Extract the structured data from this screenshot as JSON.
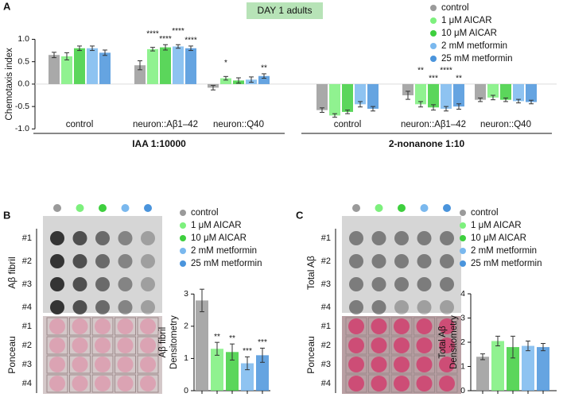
{
  "panels": [
    "A",
    "B",
    "C"
  ],
  "badge": "DAY 1 adults",
  "blots": [
    {
      "title": "Aβ fibril",
      "rows": [
        "#1",
        "#2",
        "#3",
        "#4"
      ]
    },
    {
      "title": "Ponceau",
      "rows": [
        "#1",
        "#2",
        "#3",
        "#4"
      ]
    },
    {
      "title": "Total Aβ",
      "rows": [
        "#1",
        "#2",
        "#3",
        "#4"
      ]
    },
    {
      "title": "Ponceau",
      "rows": [
        "#1",
        "#2",
        "#3",
        "#4"
      ]
    }
  ],
  "chart_data": [
    {
      "type": "bar",
      "ylabel": [
        "Chemotaxis index"
      ],
      "categories": [
        "control",
        "neuron::Aβ1–42",
        "neuron::Q40",
        "control",
        "neuron::Aβ1–42",
        "neuron::Q40"
      ],
      "sections": [
        "IAA 1:10000",
        "2-nonanone 1:10"
      ],
      "ylim": [
        -1.1,
        1.15
      ],
      "yticks": [
        {
          "value": -1.0,
          "label": "-1.0"
        },
        {
          "value": -0.5,
          "label": "-0.5"
        },
        {
          "value": 0.0,
          "label": "0.0"
        },
        {
          "value": 0.5,
          "label": "0.5"
        },
        {
          "value": 1.0,
          "label": "1.0"
        }
      ],
      "series": [
        {
          "name": "control",
          "color": "#9a9a9a",
          "values": [
            0.65,
            0.42,
            -0.08,
            -0.58,
            -0.25,
            -0.35
          ],
          "errors": [
            0.06,
            0.1,
            0.05,
            0.05,
            0.09,
            0.04
          ],
          "annotations": [
            null,
            null,
            null,
            null,
            null,
            null
          ]
        },
        {
          "name": "1 μM AICAR",
          "color": "#7df07d",
          "values": [
            0.62,
            0.78,
            0.13,
            -0.7,
            -0.45,
            -0.3
          ],
          "errors": [
            0.08,
            0.04,
            0.04,
            0.04,
            0.06,
            0.05
          ],
          "annotations": [
            null,
            "****",
            "*",
            null,
            "**",
            null
          ]
        },
        {
          "name": "10 μM AICAR",
          "color": "#3ecf3e",
          "values": [
            0.8,
            0.82,
            0.08,
            -0.62,
            -0.52,
            -0.35
          ],
          "errors": [
            0.05,
            0.06,
            0.06,
            0.04,
            0.06,
            0.04
          ],
          "annotations": [
            null,
            "****",
            null,
            null,
            "***",
            null
          ]
        },
        {
          "name": "2 mM metformin",
          "color": "#7ab8ee",
          "values": [
            0.8,
            0.84,
            0.1,
            -0.45,
            -0.55,
            -0.38
          ],
          "errors": [
            0.05,
            0.04,
            0.06,
            0.06,
            0.05,
            0.04
          ],
          "annotations": [
            null,
            "****",
            null,
            null,
            "****",
            null
          ]
        },
        {
          "name": "25 mM metformin",
          "color": "#4a94dc",
          "values": [
            0.7,
            0.8,
            0.18,
            -0.55,
            -0.5,
            -0.4
          ],
          "errors": [
            0.06,
            0.05,
            0.05,
            0.05,
            0.06,
            0.04
          ],
          "annotations": [
            null,
            "****",
            "**",
            null,
            "**",
            null
          ]
        }
      ]
    },
    {
      "type": "bar",
      "ylabel": [
        "Aβ fibril",
        "Densitometry"
      ],
      "categories": [
        null
      ],
      "ylim": [
        0,
        3.5
      ],
      "yticks": [
        0,
        1,
        2,
        3
      ],
      "series": [
        {
          "name": "control",
          "color": "#9a9a9a",
          "values": [
            2.8
          ],
          "errors": [
            0.35
          ],
          "annotations": [
            null
          ]
        },
        {
          "name": "1 μM AICAR",
          "color": "#7df07d",
          "values": [
            1.3
          ],
          "errors": [
            0.2
          ],
          "annotations": [
            "**"
          ]
        },
        {
          "name": "10 μM AICAR",
          "color": "#3ecf3e",
          "values": [
            1.2
          ],
          "errors": [
            0.25
          ],
          "annotations": [
            "**"
          ]
        },
        {
          "name": "2 mM metformin",
          "color": "#7ab8ee",
          "values": [
            0.85
          ],
          "errors": [
            0.2
          ],
          "annotations": [
            "***"
          ]
        },
        {
          "name": "25 mM metformin",
          "color": "#4a94dc",
          "values": [
            1.1
          ],
          "errors": [
            0.22
          ],
          "annotations": [
            "***"
          ]
        }
      ]
    },
    {
      "type": "bar",
      "ylabel": [
        "Total Aβ",
        "Densitometry"
      ],
      "categories": [
        null
      ],
      "ylim": [
        0,
        4
      ],
      "yticks": [
        0,
        1,
        2,
        3,
        4
      ],
      "series": [
        {
          "name": "control",
          "color": "#9a9a9a",
          "values": [
            1.4
          ],
          "errors": [
            0.12
          ],
          "annotations": [
            null
          ]
        },
        {
          "name": "1 μM AICAR",
          "color": "#7df07d",
          "values": [
            2.05
          ],
          "errors": [
            0.2
          ],
          "annotations": [
            null
          ]
        },
        {
          "name": "10 μM AICAR",
          "color": "#3ecf3e",
          "values": [
            1.8
          ],
          "errors": [
            0.45
          ],
          "annotations": [
            null
          ]
        },
        {
          "name": "2 mM metformin",
          "color": "#7ab8ee",
          "values": [
            1.85
          ],
          "errors": [
            0.2
          ],
          "annotations": [
            null
          ]
        },
        {
          "name": "25 mM metformin",
          "color": "#4a94dc",
          "values": [
            1.8
          ],
          "errors": [
            0.15
          ],
          "annotations": [
            null
          ]
        }
      ]
    }
  ]
}
